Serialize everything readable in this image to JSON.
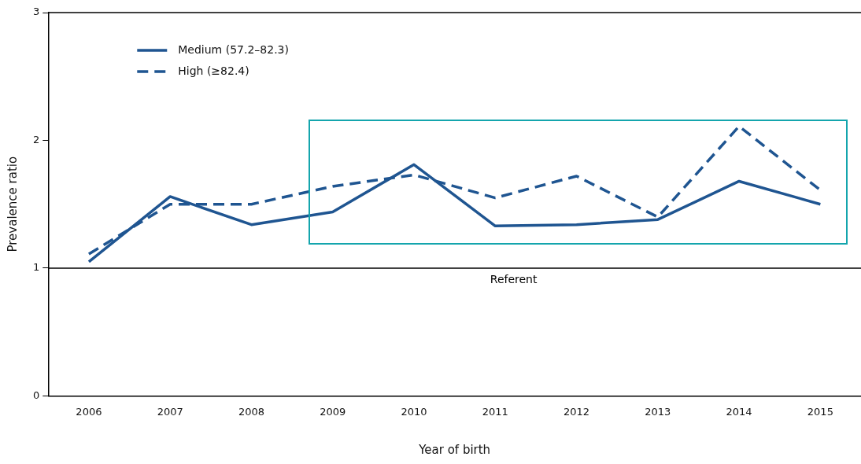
{
  "chart_data": {
    "type": "line",
    "xlabel": "Year of birth",
    "ylabel": "Prevalence ratio",
    "categories": [
      "2006",
      "2007",
      "2008",
      "2009",
      "2010",
      "2011",
      "2012",
      "2013",
      "2014",
      "2015"
    ],
    "series": [
      {
        "name": "Medium (57.2–82.3)",
        "color": "#1f5591",
        "line_style": "solid",
        "values": [
          1.05,
          1.56,
          1.34,
          1.44,
          1.81,
          1.33,
          1.34,
          1.38,
          1.68,
          1.5
        ]
      },
      {
        "name": "High (≥82.4)",
        "color": "#1f5591",
        "line_style": "dashed",
        "values": [
          1.11,
          1.5,
          1.5,
          1.64,
          1.73,
          1.55,
          1.72,
          1.4,
          2.11,
          1.61
        ]
      }
    ],
    "ylim": [
      0,
      3
    ],
    "yticks": [
      0,
      1,
      2,
      3
    ],
    "grid": false,
    "legend": "top left",
    "marker": "none",
    "ref_lines": [
      {
        "axis": "y",
        "value": 1,
        "label": "Referent",
        "color": "#000000"
      }
    ]
  }
}
